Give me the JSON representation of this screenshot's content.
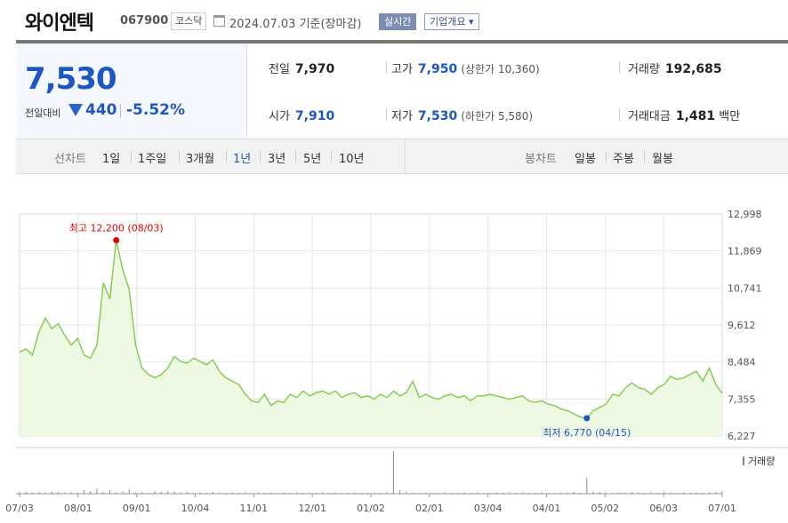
{
  "header": {
    "name": "와이엔텍",
    "code": "067900",
    "market": "코스닥",
    "date": "2024.07.03 기준(장마감)",
    "realtime": "실시간",
    "company_info": "기업개요 ▾"
  },
  "quote": {
    "price": "7,530",
    "compare_label": "전일대비",
    "change": "440",
    "change_pct": "-5.52%",
    "prev_label": "전일",
    "prev": "7,970",
    "high_label": "고가",
    "high": "7,950",
    "upper_limit": "(상한가 10,360)",
    "volume_label": "거래량",
    "volume": "192,685",
    "open_label": "시가",
    "open": "7,910",
    "low_label": "저가",
    "low": "7,530",
    "lower_limit": "(하한가 5,580)",
    "amount_label": "거래대금",
    "amount": "1,481",
    "amount_unit": "백만"
  },
  "tabs": {
    "line_label": "선차트",
    "periods": [
      "1일",
      "1주일",
      "3개월",
      "1년",
      "3년",
      "5년",
      "10년"
    ],
    "selected": "1년",
    "candle_label": "봉차트",
    "candles": [
      "일봉",
      "주봉",
      "월봉"
    ]
  },
  "colors": {
    "accent": "#1d57c2",
    "line": "#7ecb4a",
    "fill": "#eef9e3",
    "max": "#e60000",
    "min": "#1d57c2"
  },
  "chart_data": {
    "type": "area",
    "y_ticks": [
      "12,998",
      "11,869",
      "10,741",
      "9,612",
      "8,484",
      "7,355",
      "6,227"
    ],
    "ylim": [
      6227,
      12998
    ],
    "x_ticks": [
      "07/03",
      "08/01",
      "09/01",
      "10/04",
      "11/01",
      "12/01",
      "01/02",
      "02/01",
      "03/04",
      "04/01",
      "05/02",
      "06/03",
      "07/01"
    ],
    "max_label": "최고 12,200 (08/03)",
    "min_label": "최저 6,770 (04/15)",
    "volume_label": "거래량",
    "price": [
      8790,
      8880,
      8700,
      9400,
      9820,
      9500,
      9650,
      9300,
      9000,
      9200,
      8700,
      8600,
      9000,
      10900,
      10400,
      12200,
      11300,
      10700,
      9000,
      8300,
      8100,
      8000,
      8100,
      8300,
      8650,
      8500,
      8450,
      8600,
      8500,
      8400,
      8550,
      8200,
      8000,
      7900,
      7800,
      7500,
      7300,
      7250,
      7500,
      7150,
      7300,
      7250,
      7500,
      7400,
      7600,
      7450,
      7550,
      7600,
      7500,
      7600,
      7400,
      7500,
      7550,
      7400,
      7450,
      7350,
      7500,
      7400,
      7600,
      7450,
      7550,
      7900,
      7400,
      7500,
      7400,
      7350,
      7450,
      7500,
      7400,
      7450,
      7300,
      7450,
      7450,
      7500,
      7450,
      7400,
      7350,
      7400,
      7450,
      7300,
      7250,
      7300,
      7200,
      7150,
      7050,
      7000,
      6900,
      6800,
      6770,
      7000,
      7100,
      7200,
      7500,
      7450,
      7700,
      7850,
      7700,
      7650,
      7500,
      7700,
      7800,
      8050,
      7950,
      8000,
      8100,
      8200,
      7900,
      8300,
      7800,
      7530
    ],
    "volume": [
      4,
      5,
      3,
      4,
      3,
      5,
      4,
      3,
      4,
      3,
      8,
      6,
      12,
      4,
      9,
      3,
      5,
      10,
      3,
      4,
      2,
      5,
      4,
      6,
      5,
      3,
      4,
      2,
      3,
      2,
      4,
      3,
      2,
      3,
      2,
      3,
      2,
      3,
      2,
      3,
      2,
      3,
      2,
      3,
      2,
      2,
      2,
      3,
      2,
      3,
      2,
      2,
      3,
      2,
      2,
      3,
      2,
      3,
      100,
      8,
      5,
      3,
      2,
      3,
      2,
      2,
      3,
      2,
      2,
      3,
      2,
      3,
      2,
      2,
      3,
      2,
      3,
      2,
      3,
      2,
      2,
      3,
      2,
      2,
      3,
      3,
      4,
      2,
      36,
      5,
      4,
      3,
      2,
      3,
      2,
      4,
      3,
      2,
      3,
      2,
      4,
      3,
      2,
      3,
      2,
      3,
      2,
      3,
      4,
      6
    ]
  }
}
